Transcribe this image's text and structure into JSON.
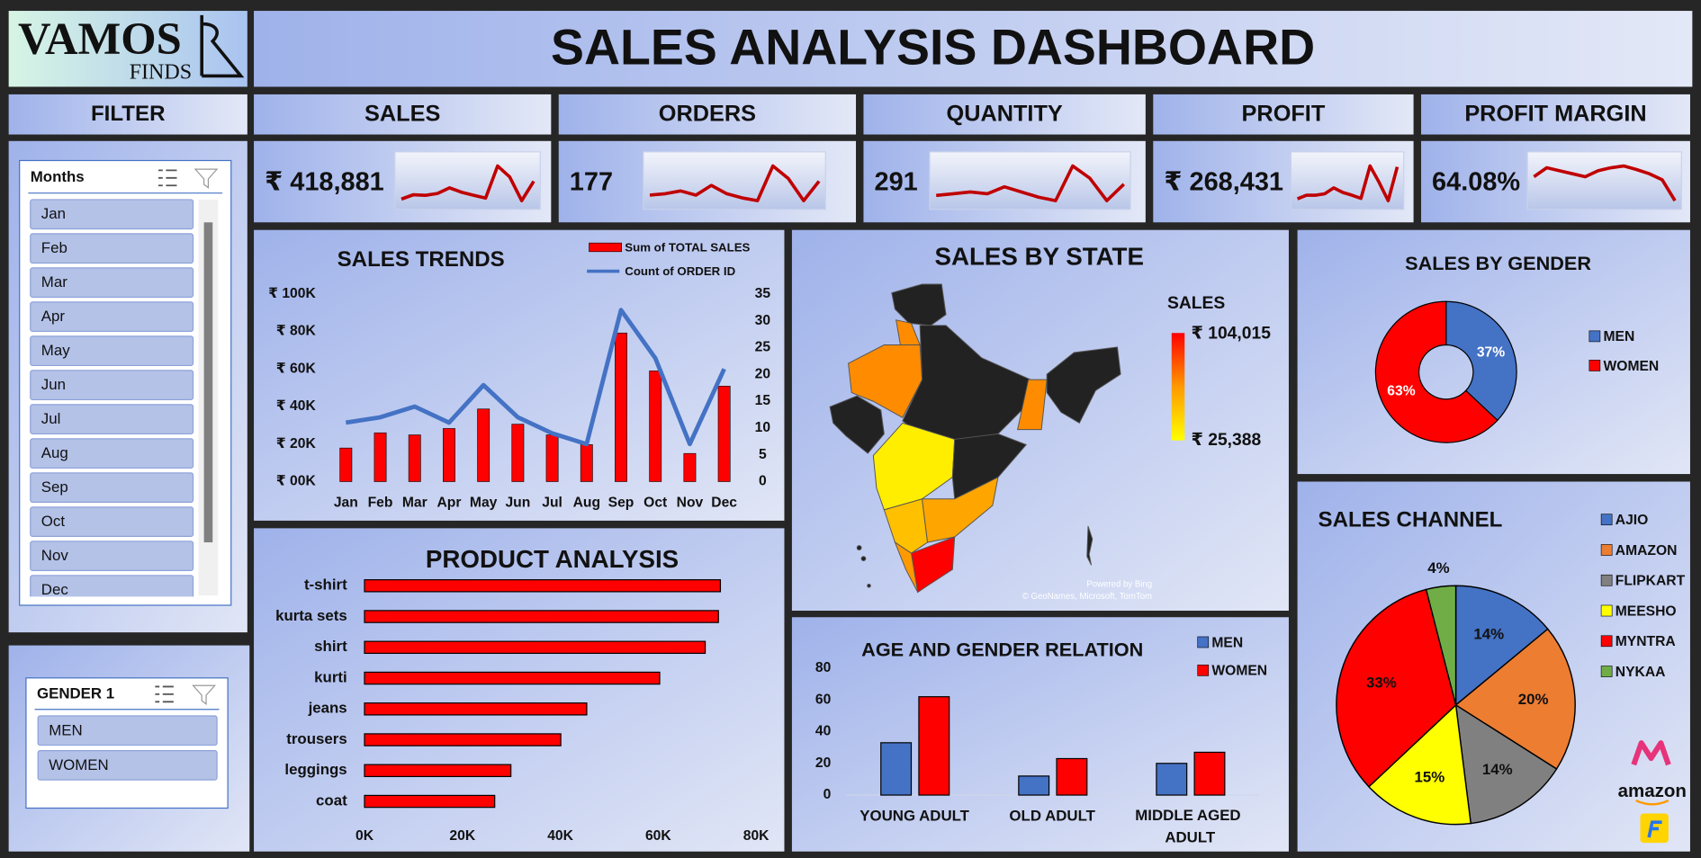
{
  "logo": {
    "name": "VAMOS",
    "tagline": "FINDS"
  },
  "header": {
    "title": "SALES ANALYSIS DASHBOARD"
  },
  "filter": {
    "title": "FILTER",
    "months": {
      "title": "Months",
      "items": [
        "Jan",
        "Feb",
        "Mar",
        "Apr",
        "May",
        "Jun",
        "Jul",
        "Aug",
        "Sep",
        "Oct",
        "Nov",
        "Dec"
      ]
    },
    "gender": {
      "title": "GENDER 1",
      "items": [
        "MEN",
        "WOMEN"
      ]
    }
  },
  "kpis": [
    {
      "label": "SALES",
      "value": "₹ 418,881",
      "trend": [
        17900,
        26000,
        24900,
        28300,
        38700,
        30600,
        24900,
        19700,
        79200,
        59000,
        15000,
        50900
      ]
    },
    {
      "label": "ORDERS",
      "value": "177",
      "trend": [
        11,
        12,
        14,
        11,
        18,
        12,
        9,
        7,
        32,
        23,
        7,
        21
      ]
    },
    {
      "label": "QUANTITY",
      "value": "291",
      "trend": [
        18,
        20,
        22,
        20,
        28,
        22,
        16,
        12,
        52,
        38,
        12,
        31
      ]
    },
    {
      "label": "PROFIT",
      "value": "₹ 268,431",
      "trend": [
        12000,
        16000,
        16000,
        17500,
        24000,
        19000,
        16000,
        12500,
        48000,
        30000,
        10000,
        47000
      ]
    },
    {
      "label": "PROFIT MARGIN",
      "value": "64.08%",
      "trend": [
        64,
        65.5,
        65,
        64.5,
        64,
        65,
        65.5,
        65.8,
        65.2,
        64.5,
        63.5,
        60
      ]
    }
  ],
  "chart_data": [
    {
      "type": "combo",
      "title": "SALES TRENDS",
      "categories": [
        "Jan",
        "Feb",
        "Mar",
        "Apr",
        "May",
        "Jun",
        "Jul",
        "Aug",
        "Sep",
        "Oct",
        "Nov",
        "Dec"
      ],
      "series": [
        {
          "name": "Sum of TOTAL SALES",
          "type": "bar",
          "color": "#ff0000",
          "values": [
            17900,
            26000,
            24900,
            28300,
            38700,
            30600,
            24900,
            19700,
            79200,
            59000,
            15000,
            50900
          ]
        },
        {
          "name": "Count of ORDER ID",
          "type": "line",
          "axis": "y2",
          "color": "#4472c4",
          "values": [
            11,
            12,
            14,
            11,
            18,
            12,
            9,
            7,
            32,
            23,
            7,
            21
          ]
        }
      ],
      "ylim": [
        0,
        100000
      ],
      "yticks": [
        {
          "value": 0,
          "label": "₹ 00K"
        },
        {
          "value": 20000,
          "label": "₹ 20K"
        },
        {
          "value": 40000,
          "label": "₹ 40K"
        },
        {
          "value": 60000,
          "label": "₹ 60K"
        },
        {
          "value": 80000,
          "label": "₹ 80K"
        },
        {
          "value": 100000,
          "label": "₹ 100K"
        }
      ],
      "y2lim": [
        0,
        35
      ],
      "y2ticks": [
        0,
        5,
        10,
        15,
        20,
        25,
        30,
        35
      ]
    },
    {
      "type": "hbar",
      "title": "PRODUCT ANALYSIS",
      "categories": [
        "t-shirt",
        "kurta sets",
        "shirt",
        "kurti",
        "jeans",
        "trousers",
        "leggings",
        "coat"
      ],
      "values": [
        72700,
        72300,
        69600,
        60300,
        45400,
        40100,
        29900,
        26600
      ],
      "color": "#ff0000",
      "xlim": [
        0,
        80000
      ],
      "xticks": [
        {
          "value": 0,
          "label": "0K"
        },
        {
          "value": 20000,
          "label": "20K"
        },
        {
          "value": 40000,
          "label": "40K"
        },
        {
          "value": 60000,
          "label": "60K"
        },
        {
          "value": 80000,
          "label": "80K"
        }
      ]
    },
    {
      "type": "map",
      "title": "SALES BY STATE",
      "legend_title": "SALES",
      "max_label": "₹ 104,015",
      "min_label": "₹ 25,388",
      "attribution": [
        "Powered by Bing",
        "© GeoNames, Microsoft, TomTom"
      ]
    },
    {
      "type": "grouped_bar",
      "title": "AGE AND GENDER RELATION",
      "categories": [
        "YOUNG ADULT",
        "OLD ADULT",
        "MIDDLE AGED ADULT"
      ],
      "series": [
        {
          "name": "MEN",
          "color": "#4472c4",
          "values": [
            33,
            12,
            20
          ]
        },
        {
          "name": "WOMEN",
          "color": "#ff0000",
          "values": [
            62,
            23,
            27
          ]
        }
      ],
      "ylim": [
        0,
        80
      ],
      "yticks": [
        0,
        20,
        40,
        60,
        80
      ]
    },
    {
      "type": "donut",
      "title": "SALES BY GENDER",
      "categories": [
        "MEN",
        "WOMEN"
      ],
      "values": [
        37,
        63
      ],
      "value_labels": [
        "37%",
        "63%"
      ],
      "colors": [
        "#4472c4",
        "#ff0000"
      ]
    },
    {
      "type": "pie",
      "title": "SALES CHANNEL",
      "categories": [
        "AJIO",
        "AMAZON",
        "FLIPKART",
        "MEESHO",
        "MYNTRA",
        "NYKAA"
      ],
      "values": [
        14,
        20,
        14,
        15,
        33,
        4
      ],
      "value_labels": [
        "14%",
        "20%",
        "14%",
        "15%",
        "33%",
        "4%"
      ],
      "colors": [
        "#4472c4",
        "#ed7d31",
        "#808080",
        "#ffff00",
        "#ff0000",
        "#70ad47"
      ]
    }
  ],
  "channel_logos": [
    "amazon"
  ]
}
